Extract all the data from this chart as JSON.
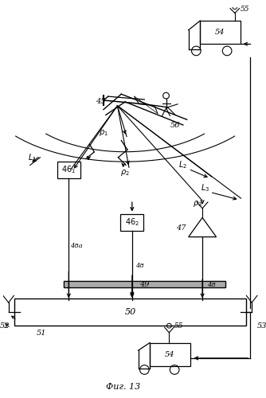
{
  "bg_color": "#ffffff",
  "line_color": "#000000",
  "figsize": [
    3.34,
    5.0
  ],
  "dpi": 100,
  "caption": "Фиг. 13"
}
